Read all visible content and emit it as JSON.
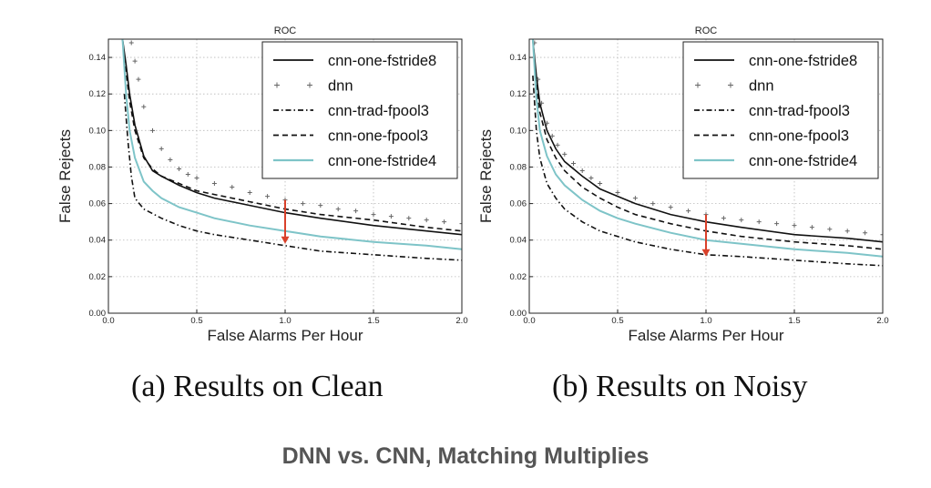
{
  "footer_title": "DNN vs. CNN, Matching Multiplies",
  "chart_data": [
    {
      "type": "line",
      "title": "ROC",
      "caption": "(a) Results on Clean",
      "xlabel": "False Alarms Per Hour",
      "ylabel": "False Rejects",
      "xlim": [
        0.0,
        2.0
      ],
      "ylim": [
        0.0,
        0.15
      ],
      "xticks": [
        "0.0",
        "0.5",
        "1.0",
        "1.5",
        "2.0"
      ],
      "yticks": [
        "0.00",
        "0.02",
        "0.04",
        "0.06",
        "0.08",
        "0.10",
        "0.12",
        "0.14"
      ],
      "grid": true,
      "legend_position": "top-right",
      "annotation_arrow": {
        "x": 1.0,
        "from_y": 0.062,
        "to_y": 0.038,
        "color": "#d9412b"
      },
      "series": [
        {
          "name": "cnn-one-fstride8",
          "style": "solid",
          "color": "#111111",
          "x": [
            0.08,
            0.1,
            0.12,
            0.15,
            0.2,
            0.25,
            0.3,
            0.4,
            0.5,
            0.6,
            0.8,
            1.0,
            1.2,
            1.5,
            1.8,
            2.0
          ],
          "y": [
            0.15,
            0.136,
            0.12,
            0.103,
            0.086,
            0.078,
            0.075,
            0.07,
            0.066,
            0.063,
            0.059,
            0.055,
            0.052,
            0.048,
            0.045,
            0.043
          ]
        },
        {
          "name": "dnn",
          "style": "plus",
          "color": "#666666",
          "x": [
            0.13,
            0.15,
            0.17,
            0.2,
            0.25,
            0.3,
            0.35,
            0.4,
            0.45,
            0.5,
            0.6,
            0.7,
            0.8,
            0.9,
            1.0,
            1.1,
            1.2,
            1.3,
            1.4,
            1.5,
            1.6,
            1.7,
            1.8,
            1.9,
            2.0
          ],
          "y": [
            0.148,
            0.138,
            0.128,
            0.113,
            0.1,
            0.09,
            0.084,
            0.079,
            0.076,
            0.074,
            0.071,
            0.069,
            0.066,
            0.064,
            0.062,
            0.06,
            0.059,
            0.057,
            0.056,
            0.054,
            0.053,
            0.052,
            0.051,
            0.05,
            0.049
          ]
        },
        {
          "name": "cnn-trad-fpool3",
          "style": "dashdot",
          "color": "#111111",
          "x": [
            0.09,
            0.11,
            0.13,
            0.15,
            0.2,
            0.3,
            0.4,
            0.5,
            0.6,
            0.8,
            1.0,
            1.2,
            1.5,
            1.8,
            2.0
          ],
          "y": [
            0.12,
            0.095,
            0.075,
            0.063,
            0.057,
            0.052,
            0.048,
            0.045,
            0.043,
            0.04,
            0.037,
            0.034,
            0.032,
            0.03,
            0.029
          ]
        },
        {
          "name": "cnn-one-fpool3",
          "style": "dashed",
          "color": "#111111",
          "x": [
            0.08,
            0.1,
            0.12,
            0.15,
            0.2,
            0.25,
            0.3,
            0.4,
            0.5,
            0.6,
            0.8,
            1.0,
            1.2,
            1.5,
            1.8,
            2.0
          ],
          "y": [
            0.15,
            0.132,
            0.116,
            0.1,
            0.085,
            0.079,
            0.075,
            0.071,
            0.067,
            0.065,
            0.061,
            0.057,
            0.054,
            0.051,
            0.047,
            0.045
          ]
        },
        {
          "name": "cnn-one-fstride4",
          "style": "solid",
          "color": "#7ec4c8",
          "x": [
            0.08,
            0.1,
            0.12,
            0.15,
            0.2,
            0.25,
            0.3,
            0.4,
            0.5,
            0.6,
            0.8,
            1.0,
            1.2,
            1.5,
            1.8,
            2.0
          ],
          "y": [
            0.15,
            0.12,
            0.1,
            0.085,
            0.072,
            0.067,
            0.063,
            0.058,
            0.055,
            0.052,
            0.048,
            0.045,
            0.042,
            0.039,
            0.037,
            0.035
          ]
        }
      ]
    },
    {
      "type": "line",
      "title": "ROC",
      "caption": "(b) Results on Noisy",
      "xlabel": "False Alarms Per Hour",
      "ylabel": "False Rejects",
      "xlim": [
        0.0,
        2.0
      ],
      "ylim": [
        0.0,
        0.15
      ],
      "xticks": [
        "0.0",
        "0.5",
        "1.0",
        "1.5",
        "2.0"
      ],
      "yticks": [
        "0.00",
        "0.02",
        "0.04",
        "0.06",
        "0.08",
        "0.10",
        "0.12",
        "0.14"
      ],
      "grid": true,
      "legend_position": "top-right",
      "annotation_arrow": {
        "x": 1.0,
        "from_y": 0.054,
        "to_y": 0.031,
        "color": "#d9412b"
      },
      "series": [
        {
          "name": "cnn-one-fstride8",
          "style": "solid",
          "color": "#111111",
          "x": [
            0.02,
            0.04,
            0.06,
            0.1,
            0.15,
            0.2,
            0.3,
            0.4,
            0.5,
            0.6,
            0.8,
            1.0,
            1.2,
            1.5,
            1.8,
            2.0
          ],
          "y": [
            0.15,
            0.13,
            0.115,
            0.1,
            0.09,
            0.083,
            0.075,
            0.068,
            0.064,
            0.06,
            0.054,
            0.05,
            0.047,
            0.043,
            0.041,
            0.039
          ]
        },
        {
          "name": "dnn",
          "style": "plus",
          "color": "#666666",
          "x": [
            0.03,
            0.05,
            0.07,
            0.1,
            0.13,
            0.16,
            0.2,
            0.25,
            0.3,
            0.35,
            0.4,
            0.5,
            0.6,
            0.7,
            0.8,
            0.9,
            1.0,
            1.1,
            1.2,
            1.3,
            1.4,
            1.5,
            1.6,
            1.7,
            1.8,
            1.9,
            2.0
          ],
          "y": [
            0.148,
            0.128,
            0.115,
            0.104,
            0.097,
            0.092,
            0.087,
            0.082,
            0.078,
            0.074,
            0.071,
            0.066,
            0.063,
            0.06,
            0.058,
            0.056,
            0.054,
            0.052,
            0.051,
            0.05,
            0.049,
            0.048,
            0.047,
            0.046,
            0.045,
            0.044,
            0.043
          ]
        },
        {
          "name": "cnn-trad-fpool3",
          "style": "dashdot",
          "color": "#111111",
          "x": [
            0.02,
            0.04,
            0.06,
            0.1,
            0.15,
            0.2,
            0.3,
            0.4,
            0.5,
            0.6,
            0.8,
            1.0,
            1.2,
            1.5,
            1.8,
            2.0
          ],
          "y": [
            0.13,
            0.1,
            0.085,
            0.071,
            0.063,
            0.057,
            0.05,
            0.045,
            0.042,
            0.039,
            0.035,
            0.032,
            0.031,
            0.029,
            0.027,
            0.026
          ]
        },
        {
          "name": "cnn-one-fpool3",
          "style": "dashed",
          "color": "#111111",
          "x": [
            0.02,
            0.04,
            0.06,
            0.1,
            0.15,
            0.2,
            0.3,
            0.4,
            0.5,
            0.6,
            0.8,
            1.0,
            1.2,
            1.5,
            1.8,
            2.0
          ],
          "y": [
            0.15,
            0.125,
            0.11,
            0.095,
            0.085,
            0.078,
            0.069,
            0.063,
            0.058,
            0.054,
            0.049,
            0.045,
            0.042,
            0.039,
            0.037,
            0.035
          ]
        },
        {
          "name": "cnn-one-fstride4",
          "style": "solid",
          "color": "#7ec4c8",
          "x": [
            0.02,
            0.04,
            0.06,
            0.1,
            0.15,
            0.2,
            0.3,
            0.4,
            0.5,
            0.6,
            0.8,
            1.0,
            1.2,
            1.5,
            1.8,
            2.0
          ],
          "y": [
            0.15,
            0.118,
            0.1,
            0.086,
            0.076,
            0.07,
            0.062,
            0.056,
            0.052,
            0.049,
            0.044,
            0.04,
            0.038,
            0.035,
            0.033,
            0.031
          ]
        }
      ]
    }
  ]
}
